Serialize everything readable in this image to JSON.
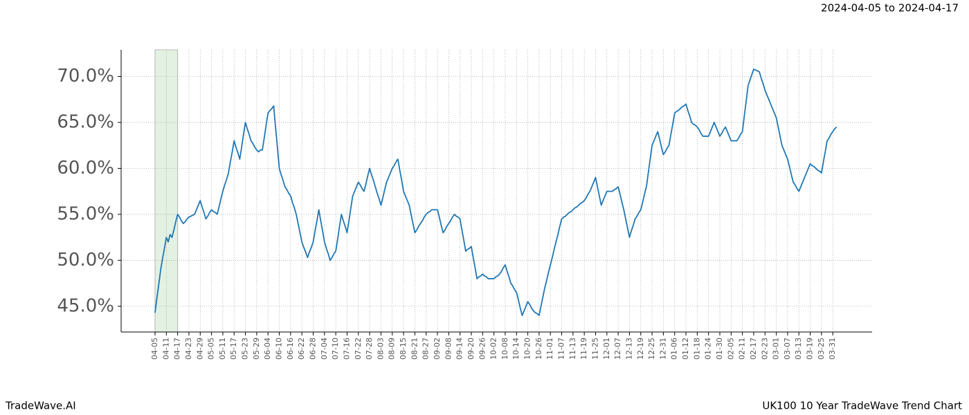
{
  "chart_data": {
    "type": "line",
    "title": "UK100 10 Year TradeWave Trend Chart",
    "subtitle": "2024-04-05 to 2024-04-17",
    "brand": "TradeWave.AI",
    "color": "#1f77b4",
    "grid": true,
    "highlight": {
      "from": 0,
      "to": 12,
      "color": "#e3f1e3"
    },
    "ylim": [
      42.2,
      72.9
    ],
    "yticks": [
      {
        "value": 45,
        "label": "45.0%"
      },
      {
        "value": 50,
        "label": "50.0%"
      },
      {
        "value": 55,
        "label": "55.0%"
      },
      {
        "value": 60,
        "label": "60.0%"
      },
      {
        "value": 65,
        "label": "65.0%"
      },
      {
        "value": 70,
        "label": "70.0%"
      }
    ],
    "categories": [
      "04-05",
      null,
      null,
      null,
      null,
      null,
      "04-11",
      null,
      null,
      null,
      null,
      null,
      "04-17",
      null,
      null,
      null,
      null,
      null,
      "04-23",
      null,
      null,
      null,
      null,
      null,
      "04-29",
      null,
      null,
      null,
      null,
      null,
      "05-05",
      null,
      null,
      null,
      null,
      null,
      "05-11",
      null,
      null,
      null,
      null,
      null,
      "05-17",
      null,
      null,
      null,
      null,
      null,
      "05-23",
      null,
      null,
      null,
      null,
      null,
      "05-29",
      null,
      null,
      null,
      null,
      null,
      "06-04",
      null,
      null,
      null,
      null,
      null,
      "06-10",
      null,
      null,
      null,
      null,
      null,
      "06-16",
      null,
      null,
      null,
      null,
      null,
      "06-22",
      null,
      null,
      null,
      null,
      null,
      "06-28",
      null,
      null,
      null,
      null,
      null,
      "07-04",
      null,
      null,
      null,
      null,
      null,
      "07-10",
      null,
      null,
      null,
      null,
      null,
      "07-16",
      null,
      null,
      null,
      null,
      null,
      "07-22",
      null,
      null,
      null,
      null,
      null,
      "07-28",
      null,
      null,
      null,
      null,
      null,
      "08-03",
      null,
      null,
      null,
      null,
      null,
      "08-09",
      null,
      null,
      null,
      null,
      null,
      "08-15",
      null,
      null,
      null,
      null,
      null,
      "08-21",
      null,
      null,
      null,
      null,
      null,
      "08-27",
      null,
      null,
      null,
      null,
      null,
      "09-02",
      null,
      null,
      null,
      null,
      null,
      "09-08",
      null,
      null,
      null,
      null,
      null,
      "09-14",
      null,
      null,
      null,
      null,
      null,
      "09-20",
      null,
      null,
      null,
      null,
      null,
      "09-26",
      null,
      null,
      null,
      null,
      null,
      "10-02",
      null,
      null,
      null,
      null,
      null,
      "10-08",
      null,
      null,
      null,
      null,
      null,
      "10-14",
      null,
      null,
      null,
      null,
      null,
      "10-20",
      null,
      null,
      null,
      null,
      null,
      "10-26",
      null,
      null,
      null,
      null,
      null,
      "11-01",
      null,
      null,
      null,
      null,
      null,
      "11-07",
      null,
      null,
      null,
      null,
      null,
      "11-13",
      null,
      null,
      null,
      null,
      null,
      "11-19",
      null,
      null,
      null,
      null,
      null,
      "11-25",
      null,
      null,
      null,
      null,
      null,
      "12-01",
      null,
      null,
      null,
      null,
      null,
      "12-07",
      null,
      null,
      null,
      null,
      null,
      "12-13",
      null,
      null,
      null,
      null,
      null,
      "12-19",
      null,
      null,
      null,
      null,
      null,
      "12-25",
      null,
      null,
      null,
      null,
      null,
      "12-31",
      null,
      null,
      null,
      null,
      null,
      "01-06",
      null,
      null,
      null,
      null,
      null,
      "01-12",
      null,
      null,
      null,
      null,
      null,
      "01-18",
      null,
      null,
      null,
      null,
      null,
      "01-24",
      null,
      null,
      null,
      null,
      null,
      "01-30",
      null,
      null,
      null,
      null,
      null,
      "02-05",
      null,
      null,
      null,
      null,
      null,
      "02-11",
      null,
      null,
      null,
      null,
      null,
      "02-17",
      null,
      null,
      null,
      null,
      null,
      "02-23",
      null,
      null,
      null,
      null,
      null,
      "03-01",
      null,
      null,
      null,
      null,
      null,
      "03-07",
      null,
      null,
      null,
      null,
      null,
      "03-13",
      null,
      null,
      null,
      null,
      null,
      "03-19",
      null,
      null,
      null,
      null,
      null,
      "03-25",
      null,
      null,
      null,
      null,
      null,
      "03-31",
      null,
      null
    ],
    "values": [
      44.3,
      45.9,
      47.4,
      49,
      50.2,
      51.3,
      52.5,
      52.0,
      52.8,
      52.5,
      53.3,
      54.2,
      55,
      54.7,
      54.3,
      54,
      54.2,
      54.5,
      54.7,
      54.8,
      54.9,
      55,
      55.5,
      56.0,
      56.5,
      55.8,
      55.2,
      54.5,
      54.8,
      55.2,
      55.5,
      55.3,
      55.2,
      55,
      55.8,
      56.7,
      57.5,
      58.2,
      58.8,
      59.5,
      60.7,
      61.8,
      63,
      62.3,
      61.7,
      61,
      62.3,
      63.7,
      65,
      64.3,
      63.7,
      63,
      62.7,
      62.3,
      62,
      61.8,
      62.0,
      62,
      63.3,
      64.7,
      66,
      66.3,
      66.5,
      66.8,
      64.5,
      62.3,
      60,
      59.3,
      58.7,
      58,
      57.7,
      57.3,
      57,
      56.3,
      55.7,
      55,
      54,
      53,
      52,
      51.4,
      50.9,
      50.3,
      50.9,
      51.4,
      52,
      53.2,
      54.3,
      55.5,
      54.3,
      53.2,
      52,
      51.3,
      50.7,
      50,
      50.3,
      50.7,
      51,
      52.3,
      53.7,
      55,
      54.3,
      53.7,
      53,
      54.3,
      55.7,
      57,
      57.5,
      58,
      58.5,
      58.2,
      57.8,
      57.5,
      58.3,
      59.2,
      60,
      59.3,
      58.7,
      58,
      57.3,
      56.7,
      56,
      56.8,
      57.7,
      58.5,
      59,
      59.5,
      60,
      60.3,
      60.7,
      61,
      59.8,
      58.7,
      57.5,
      57,
      56.5,
      56,
      55,
      54,
      53,
      53.3,
      53.7,
      54,
      54.3,
      54.7,
      55,
      55.2,
      55.3,
      55.5,
      55.5,
      55.5,
      55.5,
      54.7,
      53.8,
      53,
      53.3,
      53.7,
      54,
      54.3,
      54.7,
      55,
      54.8,
      54.7,
      54.5,
      53.3,
      52.2,
      51,
      51.2,
      51.3,
      51.5,
      50.3,
      49.2,
      48,
      48.2,
      48.3,
      48.5,
      48.3,
      48.2,
      48,
      48,
      48,
      48,
      48.2,
      48.3,
      48.5,
      48.8,
      49.2,
      49.5,
      48.8,
      48.2,
      47.5,
      47.2,
      46.8,
      46.5,
      45.7,
      44.8,
      44,
      44.5,
      45,
      45.5,
      45.2,
      44.8,
      44.5,
      44.3,
      44.2,
      44,
      45,
      46,
      47,
      47.8,
      48.7,
      49.5,
      50.3,
      51.2,
      52,
      52.8,
      53.7,
      54.5,
      54.7,
      54.8,
      55,
      55.2,
      55.3,
      55.5,
      55.7,
      55.8,
      56,
      56.2,
      56.3,
      56.5,
      56.8,
      57.2,
      57.5,
      58,
      58.5,
      59,
      58,
      57,
      56,
      56.5,
      57,
      57.5,
      57.5,
      57.5,
      57.5,
      57.7,
      57.8,
      58,
      57.2,
      56.3,
      55.5,
      54.5,
      53.5,
      52.5,
      53.2,
      53.8,
      54.5,
      54.8,
      55.2,
      55.5,
      56.3,
      57.2,
      58,
      59.5,
      61,
      62.5,
      63,
      63.5,
      64,
      63.2,
      62.3,
      61.5,
      61.8,
      62.2,
      62.5,
      63.7,
      64.8,
      66,
      66.2,
      66.3,
      66.5,
      66.7,
      66.8,
      67,
      66.3,
      65.7,
      65,
      64.8,
      64.7,
      64.5,
      64.2,
      63.8,
      63.5,
      63.5,
      63.5,
      63.5,
      64,
      64.5,
      65,
      64.5,
      64,
      63.5,
      63.8,
      64.2,
      64.5,
      64,
      63.5,
      63,
      63,
      63,
      63,
      63.3,
      63.7,
      64,
      65.7,
      67.3,
      69,
      69.6,
      70.2,
      70.8,
      70.7,
      70.6,
      70.5,
      69.8,
      69.2,
      68.5,
      68,
      67.5,
      67,
      66.5,
      66,
      65.5,
      64.5,
      63.5,
      62.5,
      62,
      61.5,
      61,
      60.2,
      59.3,
      58.5,
      58.2,
      57.8,
      57.5,
      58,
      58.5,
      59,
      59.5,
      60,
      60.5,
      60.3,
      60.2,
      60,
      59.8,
      59.7,
      59.5,
      60.7,
      61.8,
      63,
      63.3,
      63.7,
      64,
      64.3,
      64.5
    ]
  }
}
